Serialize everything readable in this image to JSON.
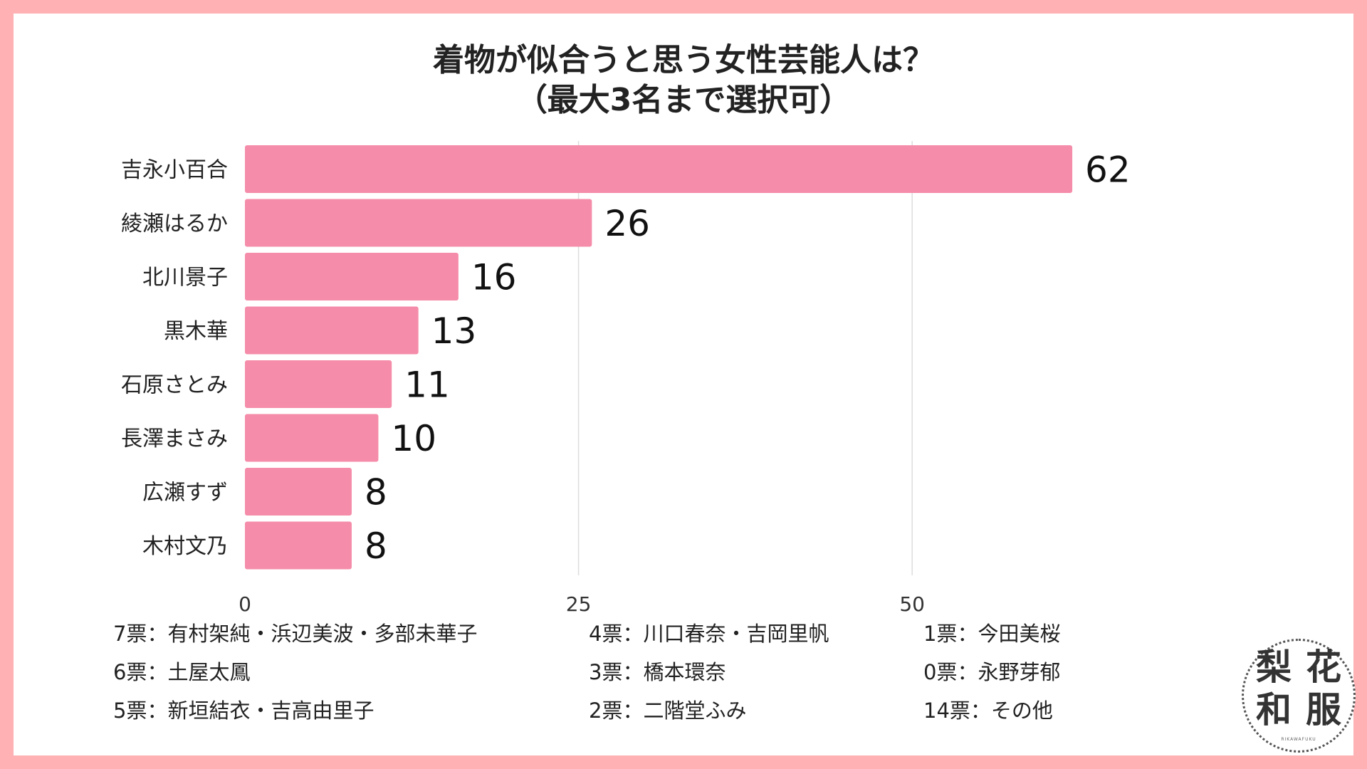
{
  "title": {
    "line1": "着物が似合うと思う女性芸能人は？",
    "line2": "（最大3名まで選択可）"
  },
  "chart_data": {
    "type": "bar",
    "orientation": "horizontal",
    "categories": [
      "吉永小百合",
      "綾瀬はるか",
      "北川景子",
      "黒木華",
      "石原さとみ",
      "長澤まさみ",
      "広瀬すず",
      "木村文乃"
    ],
    "values": [
      62,
      26,
      16,
      13,
      11,
      10,
      8,
      8
    ],
    "xticks": [
      0,
      25,
      50
    ],
    "xlim": [
      0,
      70
    ],
    "grid": "vertical",
    "bar_color": "#f58ca9",
    "grid_color": "#dcdcdc"
  },
  "footnotes": [
    "7票：有村架純・浜辺美波・多部未華子",
    "6票：土屋太鳳",
    "5票：新垣結衣・吉高由里子",
    "4票：川口春奈・吉岡里帆",
    "3票：橋本環奈",
    "2票：二階堂ふみ",
    "1票：今田美桜",
    "0票：永野芽郁",
    "14票：その他"
  ],
  "logo": {
    "chars": [
      "梨",
      "花",
      "和",
      "服"
    ],
    "subtitle": "RIKAWAFUKU"
  },
  "colors": {
    "border": "#ffb1b4",
    "background": "#ffffff",
    "text": "#222222"
  }
}
